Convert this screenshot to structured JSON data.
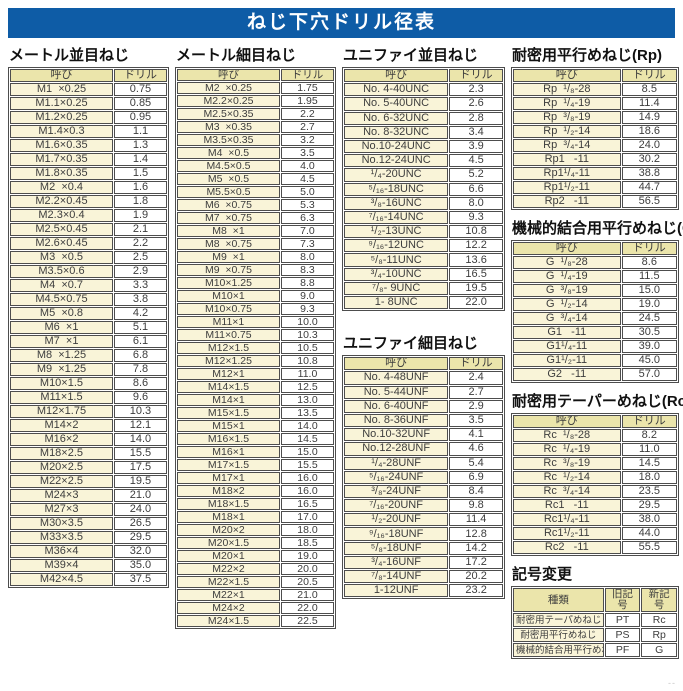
{
  "title": "ねじ下穴ドリル径表",
  "headers": {
    "name": "呼び",
    "drill": "ドリル"
  },
  "colors": {
    "banner-bg": "#0e5ca6",
    "hdr-bg": "#ebe5ab",
    "name-bg": "#f9f4d8",
    "border": "#4d4d4d"
  },
  "tables": {
    "metric_coarse": {
      "title": "メートル並目ねじ",
      "rows": [
        [
          "M1  ×0.25",
          "0.75"
        ],
        [
          "M1.1×0.25",
          "0.85"
        ],
        [
          "M1.2×0.25",
          "0.95"
        ],
        [
          "M1.4×0.3",
          "1.1"
        ],
        [
          "M1.6×0.35",
          "1.3"
        ],
        [
          "M1.7×0.35",
          "1.4"
        ],
        [
          "M1.8×0.35",
          "1.5"
        ],
        [
          "M2  ×0.4",
          "1.6"
        ],
        [
          "M2.2×0.45",
          "1.8"
        ],
        [
          "M2.3×0.4",
          "1.9"
        ],
        [
          "M2.5×0.45",
          "2.1"
        ],
        [
          "M2.6×0.45",
          "2.2"
        ],
        [
          "M3  ×0.5",
          "2.5"
        ],
        [
          "M3.5×0.6",
          "2.9"
        ],
        [
          "M4  ×0.7",
          "3.3"
        ],
        [
          "M4.5×0.75",
          "3.8"
        ],
        [
          "M5  ×0.8",
          "4.2"
        ],
        [
          "M6  ×1",
          "5.1"
        ],
        [
          "M7  ×1",
          "6.1"
        ],
        [
          "M8  ×1.25",
          "6.8"
        ],
        [
          "M9  ×1.25",
          "7.8"
        ],
        [
          "M10×1.5",
          "8.6"
        ],
        [
          "M11×1.5",
          "9.6"
        ],
        [
          "M12×1.75",
          "10.3"
        ],
        [
          "M14×2",
          "12.1"
        ],
        [
          "M16×2",
          "14.0"
        ],
        [
          "M18×2.5",
          "15.5"
        ],
        [
          "M20×2.5",
          "17.5"
        ],
        [
          "M22×2.5",
          "19.5"
        ],
        [
          "M24×3",
          "21.0"
        ],
        [
          "M27×3",
          "24.0"
        ],
        [
          "M30×3.5",
          "26.5"
        ],
        [
          "M33×3.5",
          "29.5"
        ],
        [
          "M36×4",
          "32.0"
        ],
        [
          "M39×4",
          "35.0"
        ],
        [
          "M42×4.5",
          "37.5"
        ]
      ]
    },
    "metric_fine": {
      "title": "メートル細目ねじ",
      "rows": [
        [
          "M2  ×0.25",
          "1.75"
        ],
        [
          "M2.2×0.25",
          "1.95"
        ],
        [
          "M2.5×0.35",
          "2.2"
        ],
        [
          "M3  ×0.35",
          "2.7"
        ],
        [
          "M3.5×0.35",
          "3.2"
        ],
        [
          "M4  ×0.5",
          "3.5"
        ],
        [
          "M4.5×0.5",
          "4.0"
        ],
        [
          "M5  ×0.5",
          "4.5"
        ],
        [
          "M5.5×0.5",
          "5.0"
        ],
        [
          "M6  ×0.75",
          "5.3"
        ],
        [
          "M7  ×0.75",
          "6.3"
        ],
        [
          "M8  ×1",
          "7.0"
        ],
        [
          "M8  ×0.75",
          "7.3"
        ],
        [
          "M9  ×1",
          "8.0"
        ],
        [
          "M9  ×0.75",
          "8.3"
        ],
        [
          "M10×1.25",
          "8.8"
        ],
        [
          "M10×1",
          "9.0"
        ],
        [
          "M10×0.75",
          "9.3"
        ],
        [
          "M11×1",
          "10.0"
        ],
        [
          "M11×0.75",
          "10.3"
        ],
        [
          "M12×1.5",
          "10.5"
        ],
        [
          "M12×1.25",
          "10.8"
        ],
        [
          "M12×1",
          "11.0"
        ],
        [
          "M14×1.5",
          "12.5"
        ],
        [
          "M14×1",
          "13.0"
        ],
        [
          "M15×1.5",
          "13.5"
        ],
        [
          "M15×1",
          "14.0"
        ],
        [
          "M16×1.5",
          "14.5"
        ],
        [
          "M16×1",
          "15.0"
        ],
        [
          "M17×1.5",
          "15.5"
        ],
        [
          "M17×1",
          "16.0"
        ],
        [
          "M18×2",
          "16.0"
        ],
        [
          "M18×1.5",
          "16.5"
        ],
        [
          "M18×1",
          "17.0"
        ],
        [
          "M20×2",
          "18.0"
        ],
        [
          "M20×1.5",
          "18.5"
        ],
        [
          "M20×1",
          "19.0"
        ],
        [
          "M22×2",
          "20.0"
        ],
        [
          "M22×1.5",
          "20.5"
        ],
        [
          "M22×1",
          "21.0"
        ],
        [
          "M24×2",
          "22.0"
        ],
        [
          "M24×1.5",
          "22.5"
        ]
      ]
    },
    "unified_coarse": {
      "title": "ユニファイ並目ねじ",
      "rows": [
        [
          "No. 4-40UNC",
          "2.3"
        ],
        [
          "No. 5-40UNC",
          "2.6"
        ],
        [
          "No. 6-32UNC",
          "2.8"
        ],
        [
          "No. 8-32UNC",
          "3.4"
        ],
        [
          "No.10-24UNC",
          "3.9"
        ],
        [
          "No.12-24UNC",
          "4.5"
        ],
        [
          "¹/₄-20UNC",
          "5.2"
        ],
        [
          "⁵/₁₆-18UNC",
          "6.6"
        ],
        [
          "³/₈-16UNC",
          "8.0"
        ],
        [
          "⁷/₁₆-14UNC",
          "9.3"
        ],
        [
          "¹/₂-13UNC",
          "10.8"
        ],
        [
          "⁹/₁₆-12UNC",
          "12.2"
        ],
        [
          "⁵/₈-11UNC",
          "13.6"
        ],
        [
          "³/₄-10UNC",
          "16.5"
        ],
        [
          "⁷/₈- 9UNC",
          "19.5"
        ],
        [
          "1- 8UNC",
          "22.0"
        ]
      ]
    },
    "unified_fine": {
      "title": "ユニファイ細目ねじ",
      "rows": [
        [
          "No. 4-48UNF",
          "2.4"
        ],
        [
          "No. 5-44UNF",
          "2.7"
        ],
        [
          "No. 6-40UNF",
          "2.9"
        ],
        [
          "No. 8-36UNF",
          "3.5"
        ],
        [
          "No.10-32UNF",
          "4.1"
        ],
        [
          "No.12-28UNF",
          "4.6"
        ],
        [
          "¹/₄-28UNF",
          "5.4"
        ],
        [
          "⁵/₁₆-24UNF",
          "6.9"
        ],
        [
          "³/₈-24UNF",
          "8.4"
        ],
        [
          "⁷/₁₆-20UNF",
          "9.8"
        ],
        [
          "¹/₂-20UNF",
          "11.4"
        ],
        [
          "⁹/₁₆-18UNF",
          "12.8"
        ],
        [
          "⁵/₈-18UNF",
          "14.2"
        ],
        [
          "³/₄-16UNF",
          "17.2"
        ],
        [
          "⁷/₈-14UNF",
          "20.2"
        ],
        [
          "1-12UNF",
          "23.2"
        ]
      ]
    },
    "rp": {
      "title": "耐密用平行めねじ(Rp)",
      "rows": [
        [
          "Rp  ¹/₈-28",
          "8.5"
        ],
        [
          "Rp  ¹/₄-19",
          "11.4"
        ],
        [
          "Rp  ³/₈-19",
          "14.9"
        ],
        [
          "Rp  ¹/₂-14",
          "18.6"
        ],
        [
          "Rp  ³/₄-14",
          "24.0"
        ],
        [
          "Rp1   -11",
          "30.2"
        ],
        [
          "Rp1¹/₄-11",
          "38.8"
        ],
        [
          "Rp1¹/₂-11",
          "44.7"
        ],
        [
          "Rp2   -11",
          "56.5"
        ]
      ]
    },
    "g": {
      "title": "機械的結合用平行めねじ(G)",
      "rows": [
        [
          "G  ¹/₈-28",
          "8.6"
        ],
        [
          "G  ¹/₄-19",
          "11.5"
        ],
        [
          "G  ³/₈-19",
          "15.0"
        ],
        [
          "G  ¹/₂-14",
          "19.0"
        ],
        [
          "G  ³/₄-14",
          "24.5"
        ],
        [
          "G1   -11",
          "30.5"
        ],
        [
          "G1¹/₄-11",
          "39.0"
        ],
        [
          "G1¹/₂-11",
          "45.0"
        ],
        [
          "G2   -11",
          "57.0"
        ]
      ]
    },
    "rc": {
      "title": "耐密用テーパーめねじ(Rc)",
      "rows": [
        [
          "Rc  ¹/₈-28",
          "8.2"
        ],
        [
          "Rc  ¹/₄-19",
          "11.0"
        ],
        [
          "Rc  ³/₈-19",
          "14.5"
        ],
        [
          "Rc  ¹/₂-14",
          "18.0"
        ],
        [
          "Rc  ³/₄-14",
          "23.5"
        ],
        [
          "Rc1   -11",
          "29.5"
        ],
        [
          "Rc1¹/₄-11",
          "38.0"
        ],
        [
          "Rc1¹/₂-11",
          "44.0"
        ],
        [
          "Rc2   -11",
          "55.5"
        ]
      ]
    }
  },
  "symbol_change": {
    "title": "記号変更",
    "headers": [
      "種類",
      "旧記号",
      "新記号"
    ],
    "rows": [
      [
        "耐密用テーパめねじ",
        "PT",
        "Rc"
      ],
      [
        "耐密用平行めねじ",
        "PS",
        "Rp"
      ],
      [
        "機械的結合用平行めねじ",
        "PF",
        "G"
      ]
    ]
  },
  "footer": {
    "corner_mark": "--"
  }
}
